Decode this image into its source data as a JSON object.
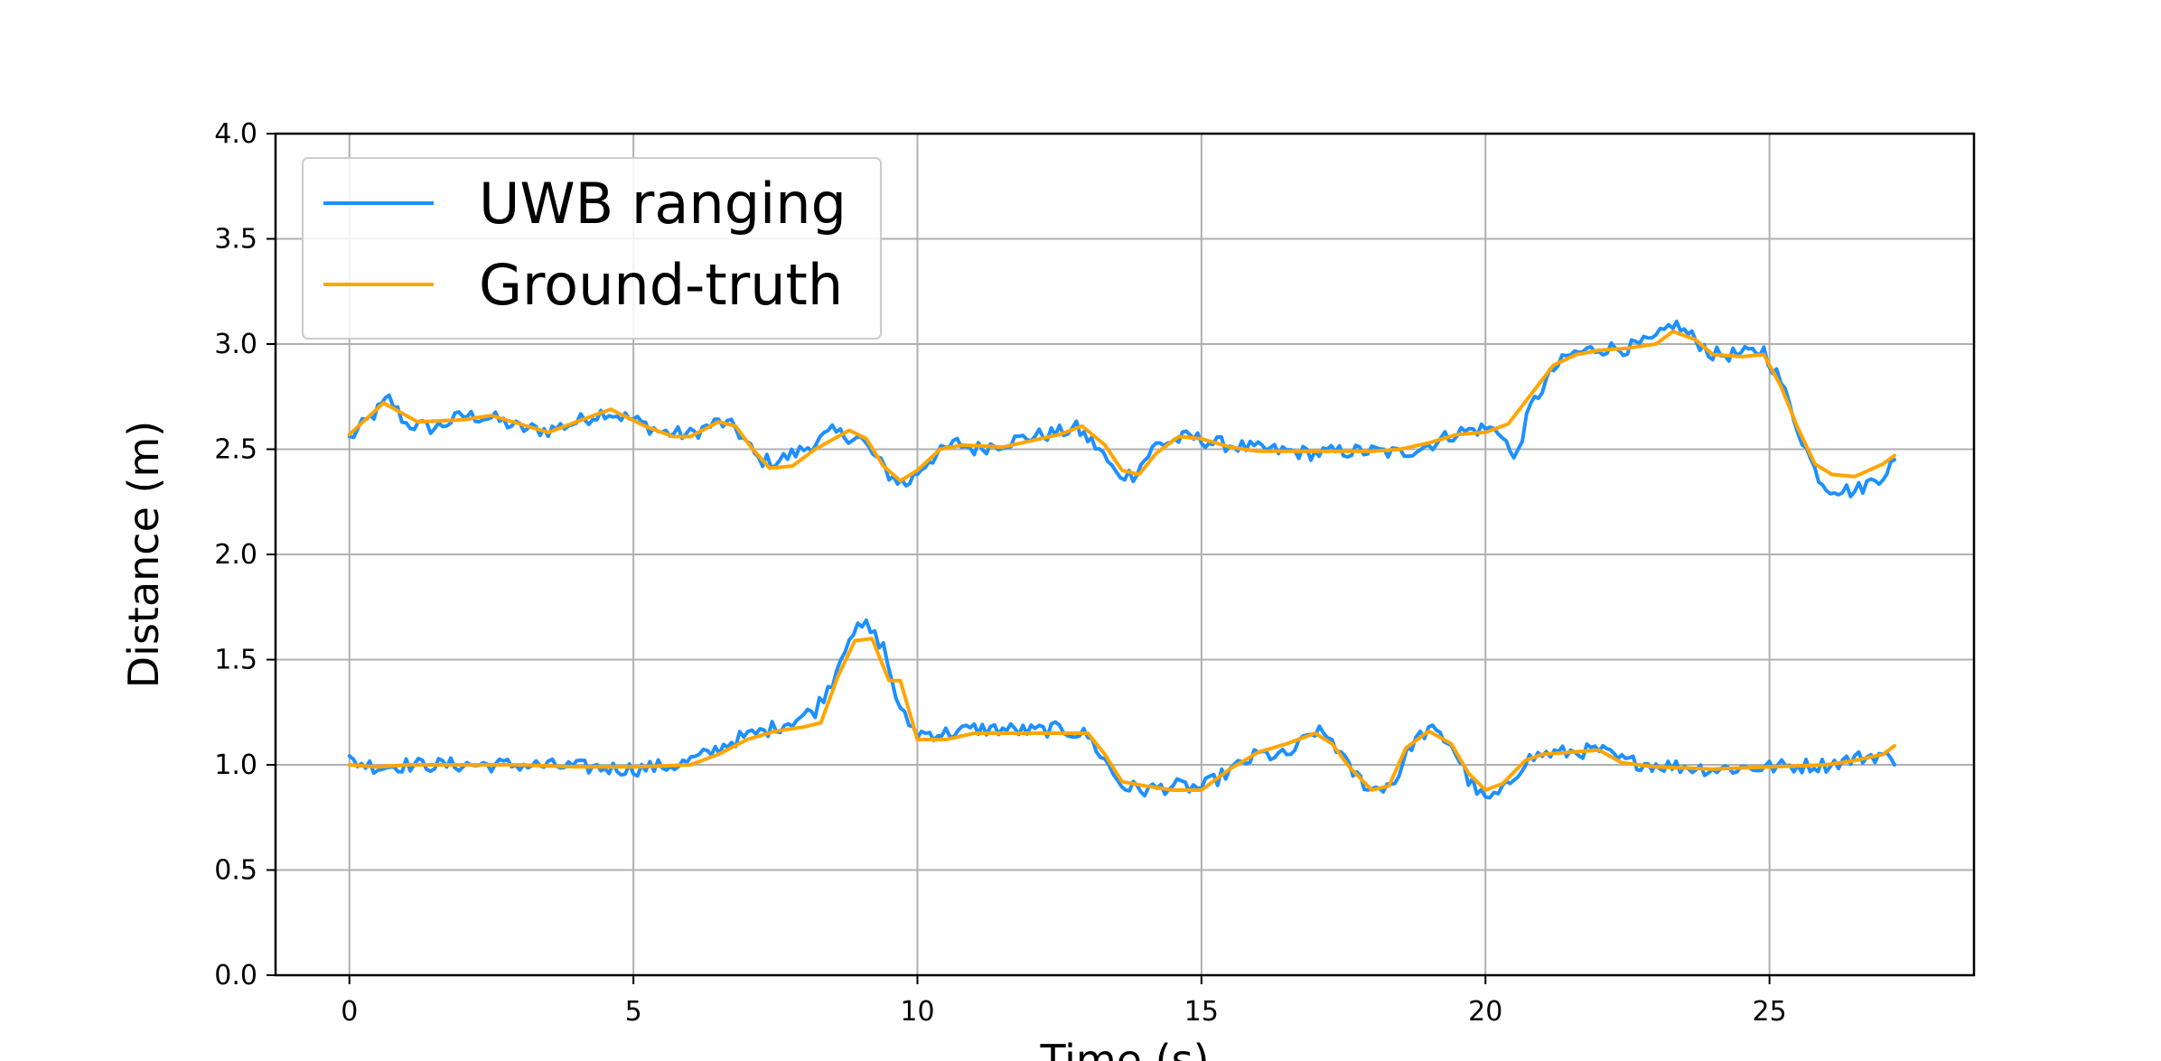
{
  "chart_data": {
    "type": "line",
    "title": "",
    "xlabel": "Time (s)",
    "ylabel": "Distance (m)",
    "xlim": [
      -1.3,
      28.6
    ],
    "ylim": [
      0.0,
      4.0
    ],
    "xticks": [
      0,
      5,
      10,
      15,
      20,
      25
    ],
    "yticks": [
      0.0,
      0.5,
      1.0,
      1.5,
      2.0,
      2.5,
      3.0,
      3.5,
      4.0
    ],
    "xtick_labels": [
      "0",
      "5",
      "10",
      "15",
      "20",
      "25"
    ],
    "ytick_labels": [
      "0.0",
      "0.5",
      "1.0",
      "1.5",
      "2.0",
      "2.5",
      "3.0",
      "3.5",
      "4.0"
    ],
    "grid": true,
    "legend": "top-left",
    "series": [
      {
        "name": "UWB ranging",
        "color": "#1e90ff",
        "noisy": true,
        "segments": [
          [
            [
              0,
              2.55
            ],
            [
              0.3,
              2.63
            ],
            [
              0.7,
              2.74
            ],
            [
              1.0,
              2.62
            ],
            [
              1.5,
              2.6
            ],
            [
              2.0,
              2.66
            ],
            [
              2.5,
              2.65
            ],
            [
              3.0,
              2.6
            ],
            [
              3.5,
              2.59
            ],
            [
              4.0,
              2.63
            ],
            [
              4.5,
              2.68
            ],
            [
              5.0,
              2.64
            ],
            [
              5.5,
              2.58
            ],
            [
              6.0,
              2.57
            ],
            [
              6.5,
              2.63
            ],
            [
              6.8,
              2.6
            ],
            [
              7.2,
              2.45
            ],
            [
              7.5,
              2.44
            ],
            [
              8.0,
              2.5
            ],
            [
              8.5,
              2.58
            ],
            [
              9.0,
              2.55
            ],
            [
              9.5,
              2.38
            ],
            [
              9.8,
              2.33
            ],
            [
              10.2,
              2.45
            ],
            [
              10.7,
              2.53
            ],
            [
              11.0,
              2.5
            ],
            [
              11.5,
              2.53
            ],
            [
              12.0,
              2.56
            ],
            [
              12.5,
              2.58
            ],
            [
              12.8,
              2.6
            ],
            [
              13.2,
              2.5
            ],
            [
              13.5,
              2.38
            ],
            [
              13.8,
              2.38
            ],
            [
              14.2,
              2.52
            ],
            [
              14.8,
              2.56
            ],
            [
              15.2,
              2.53
            ],
            [
              15.5,
              2.52
            ],
            [
              16.0,
              2.5
            ],
            [
              16.5,
              2.49
            ],
            [
              17.0,
              2.48
            ],
            [
              17.5,
              2.49
            ],
            [
              18.0,
              2.49
            ],
            [
              18.5,
              2.48
            ],
            [
              19.0,
              2.52
            ],
            [
              19.5,
              2.58
            ],
            [
              20.0,
              2.6
            ],
            [
              20.3,
              2.58
            ],
            [
              20.5,
              2.44
            ],
            [
              20.8,
              2.7
            ],
            [
              21.2,
              2.88
            ],
            [
              21.5,
              2.95
            ],
            [
              22.0,
              2.98
            ],
            [
              22.5,
              2.98
            ],
            [
              23.0,
              3.02
            ],
            [
              23.3,
              3.1
            ],
            [
              23.7,
              3.02
            ],
            [
              24.0,
              2.95
            ],
            [
              24.5,
              2.95
            ],
            [
              24.9,
              2.97
            ],
            [
              25.2,
              2.82
            ],
            [
              25.5,
              2.6
            ],
            [
              25.8,
              2.4
            ],
            [
              26.0,
              2.32
            ],
            [
              26.5,
              2.3
            ],
            [
              27.0,
              2.38
            ],
            [
              27.2,
              2.45
            ]
          ],
          [
            [
              0,
              1.02
            ],
            [
              0.5,
              0.99
            ],
            [
              1.0,
              1.0
            ],
            [
              2.0,
              1.0
            ],
            [
              3.0,
              1.0
            ],
            [
              4.0,
              0.99
            ],
            [
              5.0,
              0.98
            ],
            [
              5.8,
              1.0
            ],
            [
              6.3,
              1.05
            ],
            [
              6.8,
              1.12
            ],
            [
              7.3,
              1.16
            ],
            [
              7.8,
              1.21
            ],
            [
              8.2,
              1.26
            ],
            [
              8.5,
              1.4
            ],
            [
              8.8,
              1.62
            ],
            [
              9.1,
              1.66
            ],
            [
              9.4,
              1.56
            ],
            [
              9.7,
              1.25
            ],
            [
              10.0,
              1.15
            ],
            [
              10.5,
              1.15
            ],
            [
              11.0,
              1.17
            ],
            [
              11.5,
              1.17
            ],
            [
              12.0,
              1.16
            ],
            [
              12.5,
              1.17
            ],
            [
              13.0,
              1.14
            ],
            [
              13.3,
              1.02
            ],
            [
              13.6,
              0.9
            ],
            [
              14.0,
              0.88
            ],
            [
              14.5,
              0.9
            ],
            [
              15.0,
              0.89
            ],
            [
              15.5,
              0.97
            ],
            [
              16.0,
              1.05
            ],
            [
              16.5,
              1.04
            ],
            [
              17.0,
              1.16
            ],
            [
              17.3,
              1.12
            ],
            [
              17.6,
              0.98
            ],
            [
              18.0,
              0.88
            ],
            [
              18.4,
              0.92
            ],
            [
              18.7,
              1.1
            ],
            [
              19.0,
              1.17
            ],
            [
              19.4,
              1.1
            ],
            [
              19.7,
              0.93
            ],
            [
              20.0,
              0.83
            ],
            [
              20.3,
              0.87
            ],
            [
              20.7,
              1.02
            ],
            [
              21.0,
              1.05
            ],
            [
              21.5,
              1.06
            ],
            [
              22.0,
              1.07
            ],
            [
              22.4,
              1.02
            ],
            [
              23.0,
              1.0
            ],
            [
              24.0,
              0.98
            ],
            [
              25.0,
              0.99
            ],
            [
              26.0,
              1.0
            ],
            [
              26.5,
              1.03
            ],
            [
              27.0,
              1.05
            ],
            [
              27.2,
              1.0
            ]
          ]
        ]
      },
      {
        "name": "Ground-truth",
        "color": "#ffa500",
        "noisy": false,
        "segments": [
          [
            [
              0,
              2.57
            ],
            [
              0.6,
              2.72
            ],
            [
              1.2,
              2.63
            ],
            [
              2.0,
              2.64
            ],
            [
              2.5,
              2.66
            ],
            [
              3.0,
              2.62
            ],
            [
              3.5,
              2.58
            ],
            [
              4.0,
              2.63
            ],
            [
              4.6,
              2.69
            ],
            [
              5.2,
              2.61
            ],
            [
              5.7,
              2.56
            ],
            [
              6.0,
              2.56
            ],
            [
              6.5,
              2.63
            ],
            [
              6.8,
              2.61
            ],
            [
              7.1,
              2.5
            ],
            [
              7.4,
              2.41
            ],
            [
              7.8,
              2.42
            ],
            [
              8.2,
              2.5
            ],
            [
              8.8,
              2.59
            ],
            [
              9.1,
              2.55
            ],
            [
              9.4,
              2.42
            ],
            [
              9.7,
              2.35
            ],
            [
              10.0,
              2.4
            ],
            [
              10.4,
              2.5
            ],
            [
              10.8,
              2.52
            ],
            [
              11.5,
              2.51
            ],
            [
              12.0,
              2.54
            ],
            [
              12.5,
              2.57
            ],
            [
              12.9,
              2.61
            ],
            [
              13.3,
              2.52
            ],
            [
              13.6,
              2.4
            ],
            [
              13.9,
              2.38
            ],
            [
              14.2,
              2.48
            ],
            [
              14.6,
              2.56
            ],
            [
              15.0,
              2.55
            ],
            [
              15.5,
              2.51
            ],
            [
              16.0,
              2.49
            ],
            [
              17.0,
              2.49
            ],
            [
              18.0,
              2.49
            ],
            [
              18.5,
              2.5
            ],
            [
              19.0,
              2.53
            ],
            [
              19.5,
              2.57
            ],
            [
              20.0,
              2.58
            ],
            [
              20.4,
              2.62
            ],
            [
              20.8,
              2.76
            ],
            [
              21.2,
              2.9
            ],
            [
              21.6,
              2.95
            ],
            [
              22.0,
              2.97
            ],
            [
              22.5,
              2.98
            ],
            [
              23.0,
              3.0
            ],
            [
              23.3,
              3.06
            ],
            [
              23.7,
              3.02
            ],
            [
              24.0,
              2.95
            ],
            [
              24.5,
              2.94
            ],
            [
              24.9,
              2.95
            ],
            [
              25.2,
              2.8
            ],
            [
              25.5,
              2.6
            ],
            [
              25.8,
              2.43
            ],
            [
              26.1,
              2.38
            ],
            [
              26.5,
              2.37
            ],
            [
              27.0,
              2.43
            ],
            [
              27.2,
              2.47
            ]
          ],
          [
            [
              0,
              1.0
            ],
            [
              0.5,
              0.99
            ],
            [
              1.0,
              1.0
            ],
            [
              2.0,
              1.0
            ],
            [
              3.0,
              1.0
            ],
            [
              4.0,
              0.99
            ],
            [
              5.0,
              0.99
            ],
            [
              6.0,
              1.0
            ],
            [
              6.5,
              1.05
            ],
            [
              7.0,
              1.12
            ],
            [
              7.5,
              1.16
            ],
            [
              8.0,
              1.18
            ],
            [
              8.3,
              1.2
            ],
            [
              8.6,
              1.42
            ],
            [
              8.9,
              1.59
            ],
            [
              9.2,
              1.6
            ],
            [
              9.5,
              1.4
            ],
            [
              9.7,
              1.4
            ],
            [
              10.0,
              1.12
            ],
            [
              10.5,
              1.12
            ],
            [
              11.0,
              1.15
            ],
            [
              12.0,
              1.15
            ],
            [
              13.0,
              1.15
            ],
            [
              13.3,
              1.05
            ],
            [
              13.6,
              0.92
            ],
            [
              14.0,
              0.9
            ],
            [
              14.5,
              0.88
            ],
            [
              15.0,
              0.88
            ],
            [
              15.5,
              0.98
            ],
            [
              16.0,
              1.06
            ],
            [
              16.5,
              1.1
            ],
            [
              17.0,
              1.15
            ],
            [
              17.3,
              1.1
            ],
            [
              17.6,
              0.99
            ],
            [
              18.0,
              0.88
            ],
            [
              18.3,
              0.9
            ],
            [
              18.6,
              1.08
            ],
            [
              19.0,
              1.16
            ],
            [
              19.4,
              1.1
            ],
            [
              19.7,
              0.96
            ],
            [
              20.0,
              0.88
            ],
            [
              20.3,
              0.91
            ],
            [
              20.7,
              1.02
            ],
            [
              21.0,
              1.05
            ],
            [
              21.5,
              1.06
            ],
            [
              22.0,
              1.07
            ],
            [
              22.4,
              1.01
            ],
            [
              23.0,
              0.99
            ],
            [
              24.0,
              0.98
            ],
            [
              25.0,
              0.99
            ],
            [
              26.0,
              1.0
            ],
            [
              26.5,
              1.02
            ],
            [
              27.0,
              1.05
            ],
            [
              27.2,
              1.09
            ]
          ]
        ]
      }
    ]
  }
}
